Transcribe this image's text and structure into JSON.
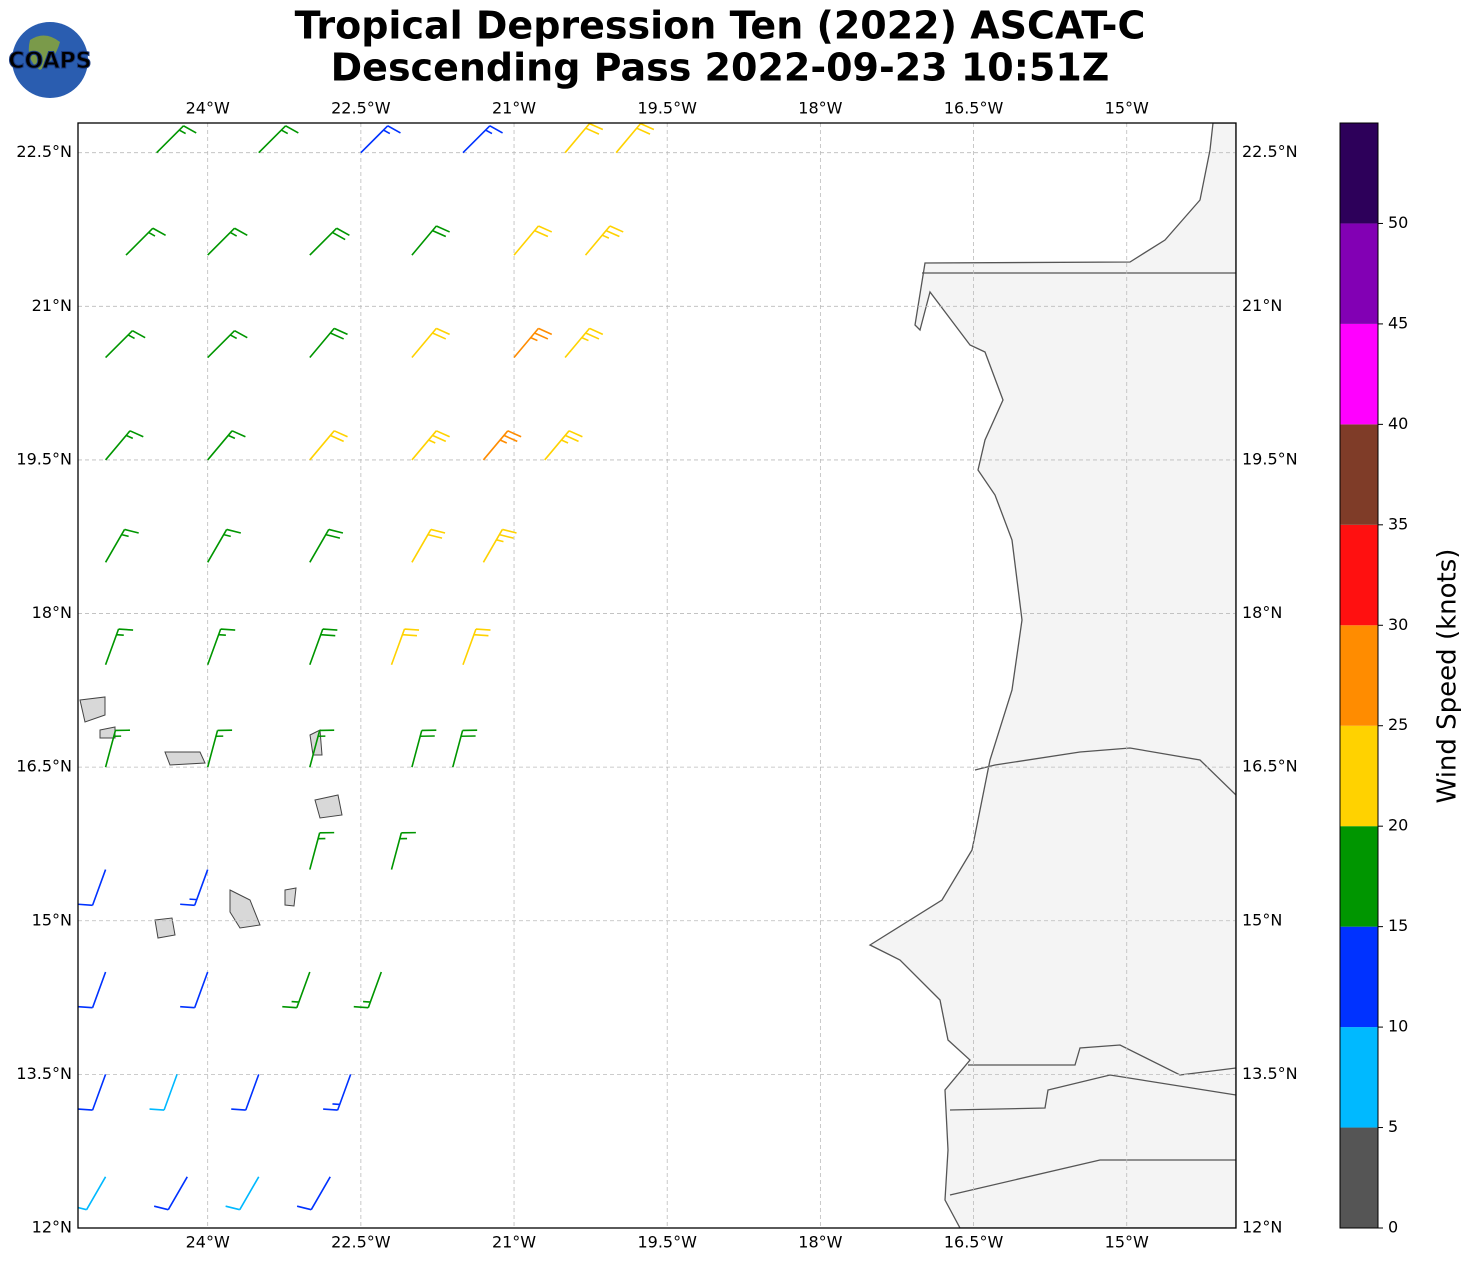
{
  "header": {
    "logo": "COAPS",
    "title": "Tropical Depression Ten (2022) ASCAT-C",
    "subtitle": "Descending Pass 2022-09-23 10:51Z"
  },
  "map": {
    "xlim": [
      -25.27,
      -13.93
    ],
    "ylim": [
      12,
      22.79
    ],
    "xticks": [
      {
        "value": -24,
        "label": "24°W"
      },
      {
        "value": -22.5,
        "label": "22.5°W"
      },
      {
        "value": -21,
        "label": "21°W"
      },
      {
        "value": -19.5,
        "label": "19.5°W"
      },
      {
        "value": -18,
        "label": "18°W"
      },
      {
        "value": -16.5,
        "label": "16.5°W"
      },
      {
        "value": -15,
        "label": "15°W"
      }
    ],
    "yticks": [
      {
        "value": 12,
        "label": "12°N"
      },
      {
        "value": 13.5,
        "label": "13.5°N"
      },
      {
        "value": 15,
        "label": "15°N"
      },
      {
        "value": 16.5,
        "label": "16.5°N"
      },
      {
        "value": 18,
        "label": "18°N"
      },
      {
        "value": 19.5,
        "label": "19.5°N"
      },
      {
        "value": 21,
        "label": "21°N"
      },
      {
        "value": 22.5,
        "label": "22.5°N"
      }
    ],
    "grid": true,
    "barbs": {
      "lon": [
        -24.5,
        -23.5,
        -22.5,
        -21.5,
        -20.5,
        -20.0,
        -24.8,
        -24.0,
        -23.0,
        -22.0,
        -21.0,
        -20.3,
        -25.0,
        -24.0,
        -23.0,
        -22.0,
        -21.0,
        -20.5,
        -25.0,
        -24.0,
        -23.0,
        -22.0,
        -21.3,
        -20.7,
        -25.0,
        -24.0,
        -23.0,
        -22.0,
        -21.3,
        -25.0,
        -24.0,
        -23.0,
        -22.2,
        -21.5,
        -25.0,
        -24.0,
        -23.0,
        -22.0,
        -21.6,
        -25.0,
        -24.0,
        -23.0,
        -22.2,
        -25.0,
        -24.0,
        -23.0,
        -22.3,
        -25.0,
        -24.3,
        -23.5,
        -22.6,
        -25.0,
        -24.2,
        -23.5,
        -22.8
      ],
      "lat": [
        22.5,
        22.5,
        22.5,
        22.5,
        22.5,
        22.5,
        21.5,
        21.5,
        21.5,
        21.5,
        21.5,
        21.5,
        20.5,
        20.5,
        20.5,
        20.5,
        20.5,
        20.5,
        19.5,
        19.5,
        19.5,
        19.5,
        19.5,
        19.5,
        18.5,
        18.5,
        18.5,
        18.5,
        18.5,
        17.5,
        17.5,
        17.5,
        17.5,
        17.5,
        16.5,
        16.5,
        16.5,
        16.5,
        16.5,
        15.5,
        15.5,
        15.5,
        15.5,
        14.5,
        14.5,
        14.5,
        14.5,
        13.5,
        13.5,
        13.5,
        13.5,
        12.5,
        12.5,
        12.5,
        12.5
      ],
      "speed": [
        17,
        17,
        14,
        13,
        22,
        22,
        17,
        17,
        18,
        18,
        22,
        23,
        16,
        17,
        18,
        22,
        27,
        23,
        16,
        17,
        21,
        23,
        26,
        23,
        16,
        17,
        19,
        22,
        23,
        16,
        17,
        18,
        21,
        22,
        15,
        16,
        17,
        18,
        19,
        12,
        13,
        16,
        17,
        11,
        12,
        15,
        16,
        11,
        8,
        12,
        13,
        8,
        11,
        9,
        12
      ],
      "dir": [
        45,
        45,
        45,
        45,
        40,
        40,
        45,
        45,
        45,
        40,
        40,
        40,
        45,
        45,
        40,
        40,
        40,
        40,
        40,
        40,
        40,
        40,
        40,
        40,
        30,
        30,
        30,
        30,
        30,
        20,
        20,
        20,
        20,
        20,
        15,
        15,
        15,
        15,
        15,
        200,
        200,
        15,
        15,
        200,
        200,
        200,
        200,
        200,
        200,
        200,
        200,
        210,
        210,
        210,
        210
      ]
    }
  },
  "colorbar": {
    "label": "Wind Speed (knots)",
    "clim": [
      0,
      55
    ],
    "bounds": [
      0,
      5,
      10,
      15,
      20,
      25,
      30,
      35,
      40,
      45,
      50,
      55
    ],
    "colors": [
      "#555555",
      "#00b9ff",
      "#0032ff",
      "#009600",
      "#ffd200",
      "#ff8c00",
      "#ff1010",
      "#7f3c28",
      "#ff00ff",
      "#8200b4",
      "#2d005a"
    ],
    "ticks": [
      0,
      5,
      10,
      15,
      20,
      25,
      30,
      35,
      40,
      45,
      50
    ]
  }
}
